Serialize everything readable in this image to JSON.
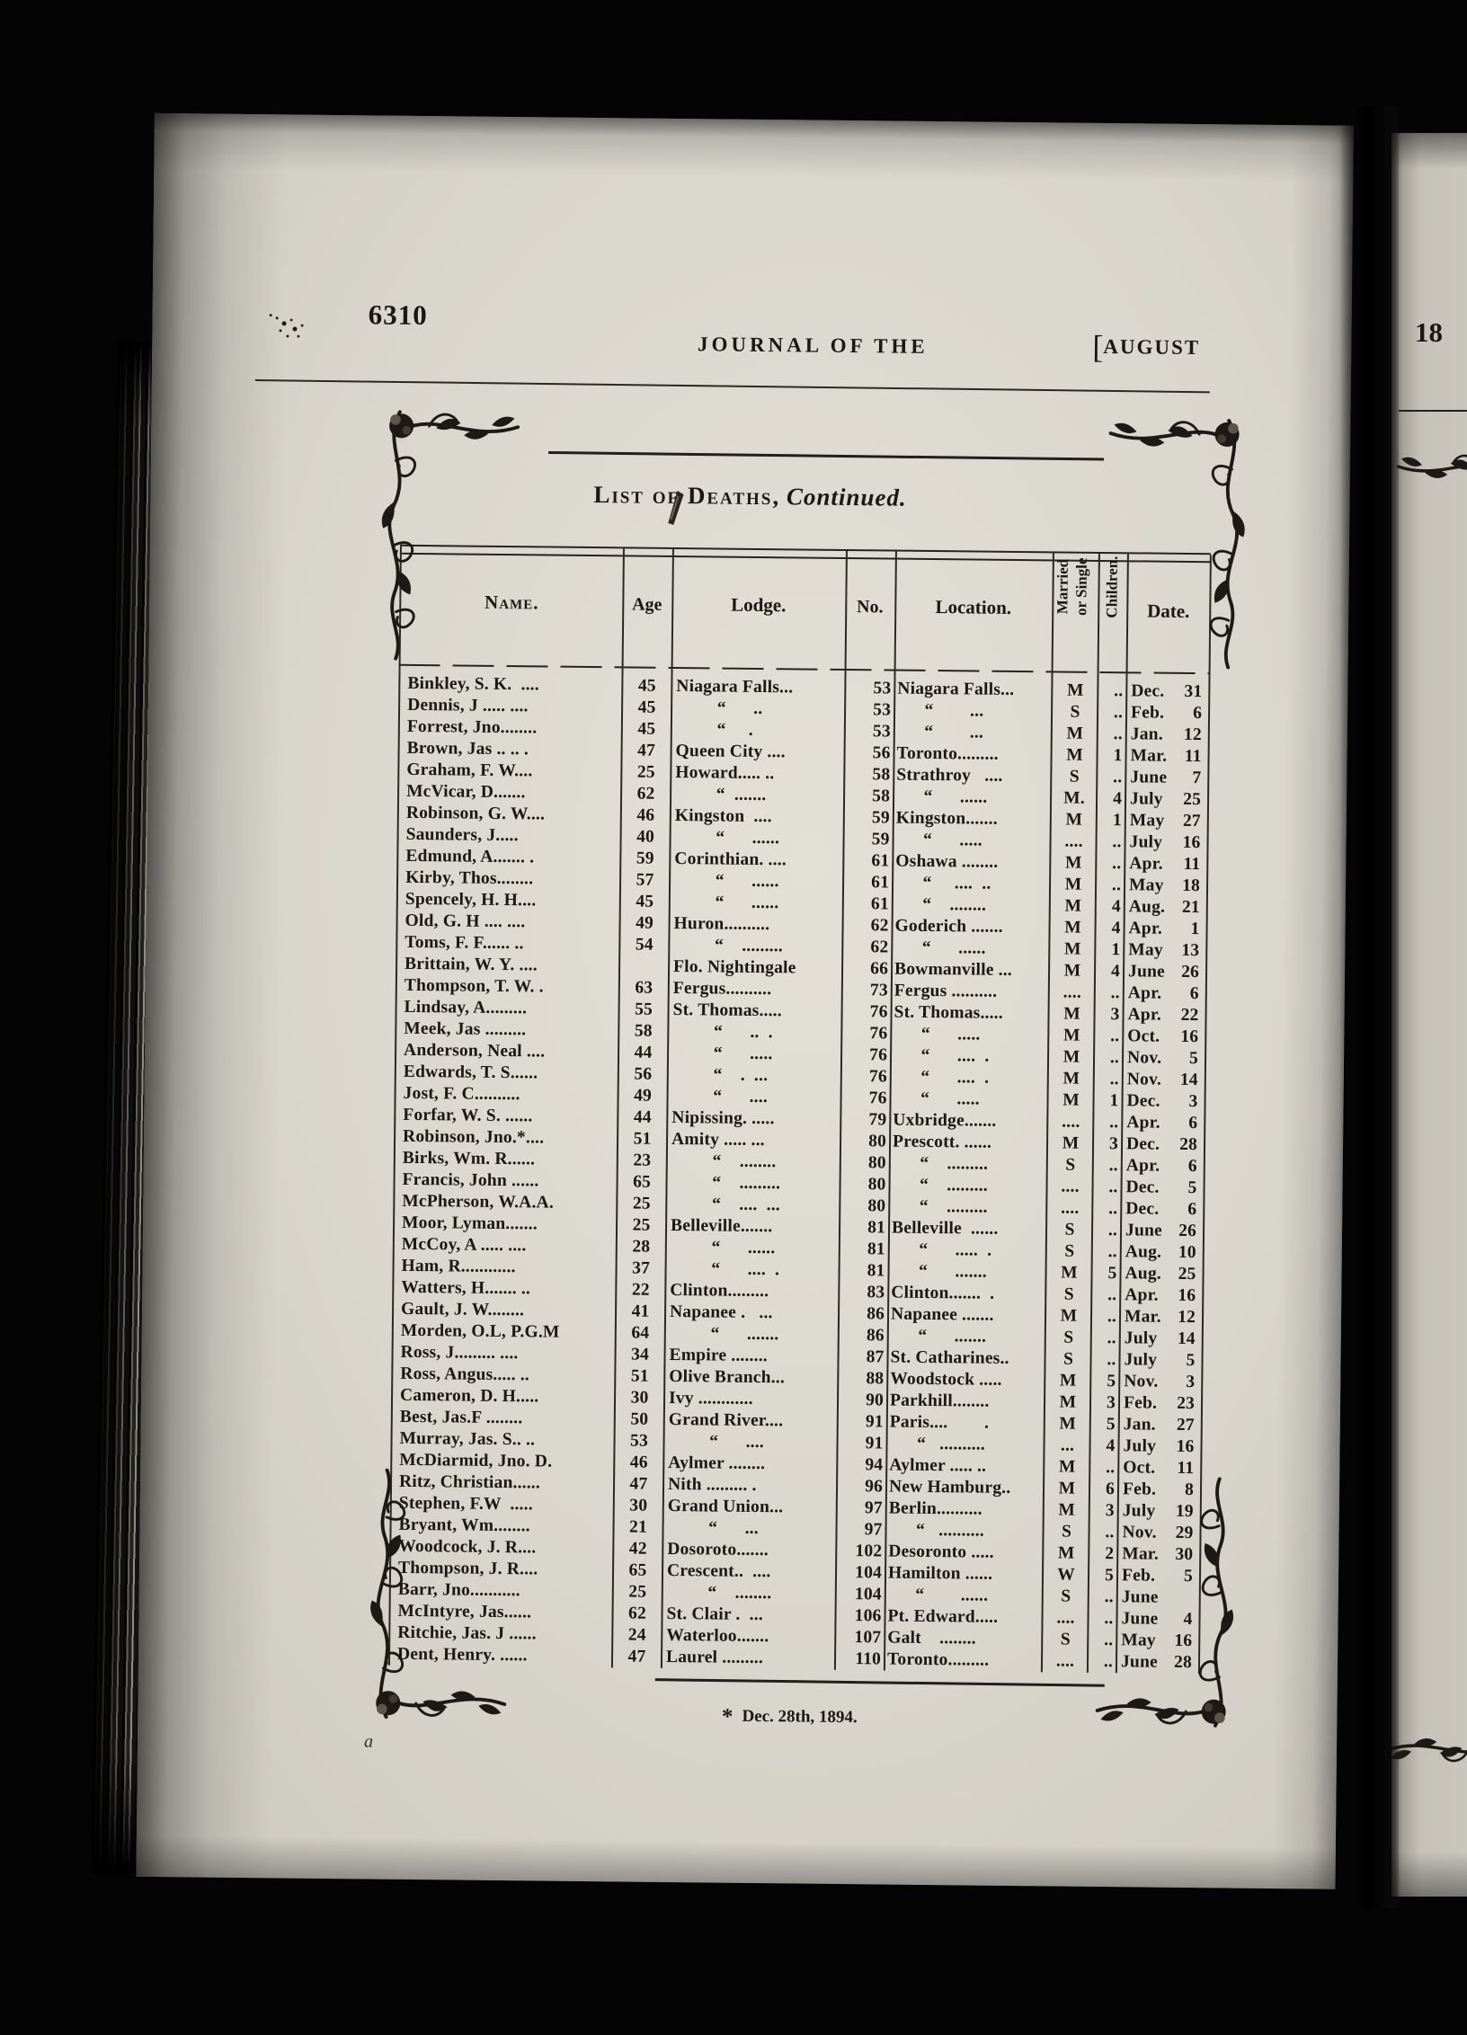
{
  "header": {
    "page_number": "6310",
    "journal_title": "JOURNAL OF THE",
    "month_bracket": "[",
    "month_label": "AUGUST",
    "next_page_number": "18"
  },
  "title": {
    "main": "List of Deaths,",
    "continued": "Continued."
  },
  "table": {
    "headers": {
      "name": "Name.",
      "age": "Age",
      "lodge": "Lodge.",
      "no": "No.",
      "location": "Location.",
      "married_1": "Married",
      "married_2": "or Single",
      "children": "Children.",
      "date": "Date."
    },
    "rows": [
      {
        "n": "Binkley, S. K.  ....",
        "a": "45",
        "l": "Niagara Falls...",
        "no": "53",
        "loc": "Niagara Falls...",
        "ms": "M",
        "ch": "..",
        "dm": "Dec.",
        "dd": "31"
      },
      {
        "n": "Dennis, J ..... ....",
        "a": "45",
        "l": "         “      ..",
        "no": "53",
        "loc": "      “        ...",
        "ms": "S",
        "ch": "..",
        "dm": "Feb.",
        "dd": "6"
      },
      {
        "n": "Forrest, Jno........",
        "a": "45",
        "l": "         “     .",
        "no": "53",
        "loc": "      “        ...",
        "ms": "M",
        "ch": "..",
        "dm": "Jan.",
        "dd": "12"
      },
      {
        "n": "Brown, Jas .. .. .",
        "a": "47",
        "l": "Queen City ....",
        "no": "56",
        "loc": "Toronto.........",
        "ms": "M",
        "ch": "1",
        "dm": "Mar.",
        "dd": "11"
      },
      {
        "n": "Graham, F. W....",
        "a": "25",
        "l": "Howard..... ..",
        "no": "58",
        "loc": "Strathroy   ....",
        "ms": "S",
        "ch": "..",
        "dm": "June",
        "dd": "7"
      },
      {
        "n": "McVicar, D.......",
        "a": "62",
        "l": "         “  .......",
        "no": "58",
        "loc": "      “      ......",
        "ms": "M.",
        "ch": "4",
        "dm": "July",
        "dd": "25"
      },
      {
        "n": "Robinson, G. W....",
        "a": "46",
        "l": "Kingston  ....",
        "no": "59",
        "loc": "Kingston.......",
        "ms": "M",
        "ch": "1",
        "dm": "May",
        "dd": "27"
      },
      {
        "n": "Saunders, J.....",
        "a": "40",
        "l": "         “      ......",
        "no": "59",
        "loc": "      “      .....",
        "ms": "....",
        "ch": "..",
        "dm": "July",
        "dd": "16"
      },
      {
        "n": "Edmund, A....... .",
        "a": "59",
        "l": "Corinthian. ....",
        "no": "61",
        "loc": "Oshawa ........",
        "ms": "M",
        "ch": "..",
        "dm": "Apr.",
        "dd": "11"
      },
      {
        "n": "Kirby, Thos........",
        "a": "57",
        "l": "         “      ......",
        "no": "61",
        "loc": "      “     ....  ..",
        "ms": "M",
        "ch": "..",
        "dm": "May",
        "dd": "18"
      },
      {
        "n": "Spencely, H. H....",
        "a": "45",
        "l": "         “      ......",
        "no": "61",
        "loc": "      “    ........",
        "ms": "M",
        "ch": "4",
        "dm": "Aug.",
        "dd": "21"
      },
      {
        "n": "Old, G. H .... ....",
        "a": "49",
        "l": "Huron..........",
        "no": "62",
        "loc": "Goderich .......",
        "ms": "M",
        "ch": "4",
        "dm": "Apr.",
        "dd": "1"
      },
      {
        "n": "Toms, F. F...... ..",
        "a": "54",
        "l": "         “    .........",
        "no": "62",
        "loc": "      “      ......",
        "ms": "M",
        "ch": "1",
        "dm": "May",
        "dd": "13"
      },
      {
        "n": "Brittain, W. Y. ....",
        "a": "",
        "l": "Flo. Nightingale",
        "no": "66",
        "loc": "Bowmanville ...",
        "ms": "M",
        "ch": "4",
        "dm": "June",
        "dd": "26"
      },
      {
        "n": "Thompson, T. W. .",
        "a": "63",
        "l": "Fergus..........",
        "no": "73",
        "loc": "Fergus ..........",
        "ms": "....",
        "ch": "..",
        "dm": "Apr.",
        "dd": "6"
      },
      {
        "n": "Lindsay, A.........",
        "a": "55",
        "l": "St. Thomas.....",
        "no": "76",
        "loc": "St. Thomas.....",
        "ms": "M",
        "ch": "3",
        "dm": "Apr.",
        "dd": "22"
      },
      {
        "n": "Meek, Jas .........",
        "a": "58",
        "l": "         “      ..  .",
        "no": "76",
        "loc": "      “      .....",
        "ms": "M",
        "ch": "..",
        "dm": "Oct.",
        "dd": "16"
      },
      {
        "n": "Anderson, Neal ....",
        "a": "44",
        "l": "         “      .....",
        "no": "76",
        "loc": "      “      ....  .",
        "ms": "M",
        "ch": "..",
        "dm": "Nov.",
        "dd": "5"
      },
      {
        "n": "Edwards, T. S......",
        "a": "56",
        "l": "         “    .  ...",
        "no": "76",
        "loc": "      “      ....  .",
        "ms": "M",
        "ch": "..",
        "dm": "Nov.",
        "dd": "14"
      },
      {
        "n": "Jost, F. C..........",
        "a": "49",
        "l": "         “      ....",
        "no": "76",
        "loc": "      “      .....",
        "ms": "M",
        "ch": "1",
        "dm": "Dec.",
        "dd": "3"
      },
      {
        "n": "Forfar, W. S. ......",
        "a": "44",
        "l": "Nipissing. .....",
        "no": "79",
        "loc": "Uxbridge.......",
        "ms": "....",
        "ch": "..",
        "dm": "Apr.",
        "dd": "6"
      },
      {
        "n": "Robinson, Jno.*....",
        "a": "51",
        "l": "Amity ..... ...",
        "no": "80",
        "loc": "Prescott. ......",
        "ms": "M",
        "ch": "3",
        "dm": "Dec.",
        "dd": "28"
      },
      {
        "n": "Birks, Wm. R......",
        "a": "23",
        "l": "         “    ........",
        "no": "80",
        "loc": "      “    .........",
        "ms": "S",
        "ch": "..",
        "dm": "Apr.",
        "dd": "6"
      },
      {
        "n": "Francis, John ......",
        "a": "65",
        "l": "         “    .........",
        "no": "80",
        "loc": "      “    .........",
        "ms": "....",
        "ch": "..",
        "dm": "Dec.",
        "dd": "5"
      },
      {
        "n": "McPherson, W.A.A.",
        "a": "25",
        "l": "         “    ....  ...",
        "no": "80",
        "loc": "      “    .........",
        "ms": "....",
        "ch": "..",
        "dm": "Dec.",
        "dd": "6"
      },
      {
        "n": "Moor, Lyman.......",
        "a": "25",
        "l": "Belleville.......",
        "no": "81",
        "loc": "Belleville  ......",
        "ms": "S",
        "ch": "..",
        "dm": "June",
        "dd": "26"
      },
      {
        "n": "McCoy, A ..... ....",
        "a": "28",
        "l": "         “      ......",
        "no": "81",
        "loc": "      “      .....  .",
        "ms": "S",
        "ch": "..",
        "dm": "Aug.",
        "dd": "10"
      },
      {
        "n": "Ham, R............",
        "a": "37",
        "l": "         “      ....  .",
        "no": "81",
        "loc": "      “      .......",
        "ms": "M",
        "ch": "5",
        "dm": "Aug.",
        "dd": "25"
      },
      {
        "n": "Watters, H....... ..",
        "a": "22",
        "l": "Clinton.........",
        "no": "83",
        "loc": "Clinton.......  .",
        "ms": "S",
        "ch": "..",
        "dm": "Apr.",
        "dd": "16"
      },
      {
        "n": "Gault, J. W........",
        "a": "41",
        "l": "Napanee .   ...",
        "no": "86",
        "loc": "Napanee .......",
        "ms": "M",
        "ch": "..",
        "dm": "Mar.",
        "dd": "12"
      },
      {
        "n": "Morden, O.L, P.G.M",
        "a": "64",
        "l": "         “      .......",
        "no": "86",
        "loc": "      “      .......",
        "ms": "S",
        "ch": "..",
        "dm": "July",
        "dd": "14"
      },
      {
        "n": "Ross, J......... ....",
        "a": "34",
        "l": "Empire ........",
        "no": "87",
        "loc": "St. Catharines..",
        "ms": "S",
        "ch": "..",
        "dm": "July",
        "dd": "5"
      },
      {
        "n": "Ross, Angus..... ..",
        "a": "51",
        "l": "Olive Branch...",
        "no": "88",
        "loc": "Woodstock .....",
        "ms": "M",
        "ch": "5",
        "dm": "Nov.",
        "dd": "3"
      },
      {
        "n": "Cameron, D. H.....",
        "a": "30",
        "l": "Ivy ............",
        "no": "90",
        "loc": "Parkhill........",
        "ms": "M",
        "ch": "3",
        "dm": "Feb.",
        "dd": "23"
      },
      {
        "n": "Best, Jas.F ........",
        "a": "50",
        "l": "Grand River....",
        "no": "91",
        "loc": "Paris....        .",
        "ms": "M",
        "ch": "5",
        "dm": "Jan.",
        "dd": "27"
      },
      {
        "n": "Murray, Jas. S.. ..",
        "a": "53",
        "l": "         “      ....",
        "no": "91",
        "loc": "      “   ..........",
        "ms": "...",
        "ch": "4",
        "dm": "July",
        "dd": "16"
      },
      {
        "n": "McDiarmid, Jno. D.",
        "a": "46",
        "l": "Aylmer ........",
        "no": "94",
        "loc": "Aylmer ..... ..",
        "ms": "M",
        "ch": "..",
        "dm": "Oct.",
        "dd": "11"
      },
      {
        "n": "Ritz, Christian......",
        "a": "47",
        "l": "Nith ......... .",
        "no": "96",
        "loc": "New Hamburg..",
        "ms": "M",
        "ch": "6",
        "dm": "Feb.",
        "dd": "8"
      },
      {
        "n": "Stephen, F.W  .....",
        "a": "30",
        "l": "Grand Union...",
        "no": "97",
        "loc": "Berlin..........",
        "ms": "M",
        "ch": "3",
        "dm": "July",
        "dd": "19"
      },
      {
        "n": "Bryant, Wm........",
        "a": "21",
        "l": "         “      ...",
        "no": "97",
        "loc": "      “   ..........",
        "ms": "S",
        "ch": "..",
        "dm": "Nov.",
        "dd": "29"
      },
      {
        "n": "Woodcock, J. R....",
        "a": "42",
        "l": "Dosoroto.......",
        "no": "102",
        "loc": "Desoronto .....",
        "ms": "M",
        "ch": "2",
        "dm": "Mar.",
        "dd": "30"
      },
      {
        "n": "Thompson, J. R....",
        "a": "65",
        "l": "Crescent..  ....",
        "no": "104",
        "loc": "Hamilton ......",
        "ms": "W",
        "ch": "5",
        "dm": "Feb.",
        "dd": "5"
      },
      {
        "n": "Barr, Jno...........",
        "a": "25",
        "l": "         “    ........",
        "no": "104",
        "loc": "      “        ......",
        "ms": "S",
        "ch": "..",
        "dm": "June",
        "dd": ""
      },
      {
        "n": "McIntyre, Jas......",
        "a": "62",
        "l": "St. Clair .  ...",
        "no": "106",
        "loc": "Pt. Edward.....",
        "ms": "....",
        "ch": "..",
        "dm": "June",
        "dd": "4"
      },
      {
        "n": "Ritchie, Jas. J ......",
        "a": "24",
        "l": "Waterloo.......",
        "no": "107",
        "loc": "Galt    ........",
        "ms": "S",
        "ch": "..",
        "dm": "May",
        "dd": "16"
      },
      {
        "n": "Dent, Henry. ......",
        "a": "47",
        "l": "Laurel .........",
        "no": "110",
        "loc": "Toronto.........",
        "ms": "....",
        "ch": "..",
        "dm": "June",
        "dd": "28"
      }
    ]
  },
  "footnote": {
    "symbol": "*",
    "text": "Dec. 28th, 1894."
  },
  "stray_mark": "a",
  "colors": {
    "paper": "#d9d6cd",
    "ink": "#1b1712",
    "background": "#000000"
  }
}
